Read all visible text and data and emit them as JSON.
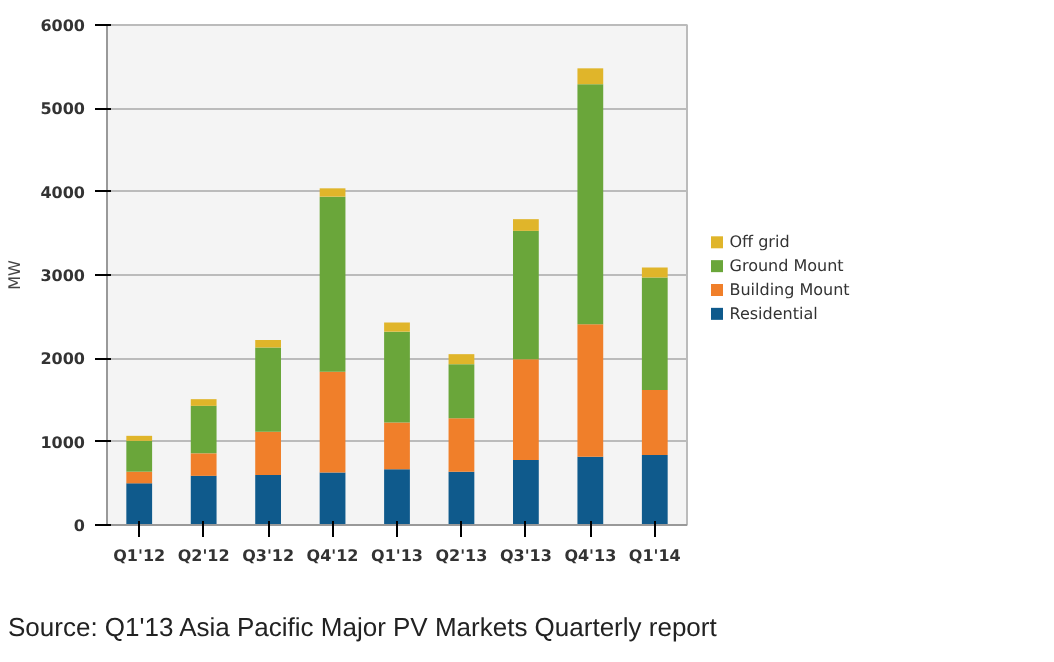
{
  "chart_data": {
    "type": "bar",
    "stacked": true,
    "ylabel": "MW",
    "categories": [
      "Q1'12",
      "Q2'12",
      "Q3'12",
      "Q4'12",
      "Q1'13",
      "Q2'13",
      "Q3'13",
      "Q4'13",
      "Q1'14"
    ],
    "series": [
      {
        "name": "Residential",
        "color": "#0f5a8c",
        "values": [
          500,
          590,
          600,
          630,
          670,
          640,
          780,
          820,
          840
        ]
      },
      {
        "name": "Building Mount",
        "color": "#f07f2a",
        "values": [
          140,
          270,
          520,
          1210,
          560,
          640,
          1210,
          1590,
          780
        ]
      },
      {
        "name": "Ground Mount",
        "color": "#6aa63a",
        "values": [
          370,
          570,
          1010,
          2100,
          1090,
          650,
          1540,
          2880,
          1350
        ]
      },
      {
        "name": "Off grid",
        "color": "#e0b52a",
        "values": [
          60,
          80,
          90,
          100,
          110,
          120,
          140,
          190,
          120
        ]
      }
    ],
    "ylim": [
      0,
      6000
    ],
    "yticks": [
      0,
      1000,
      2000,
      3000,
      4000,
      5000,
      6000
    ],
    "grid": "y",
    "legend": "right",
    "annotations": [
      "Source: Q1'13 Asia Pacific Major PV Markets Quarterly report"
    ]
  }
}
